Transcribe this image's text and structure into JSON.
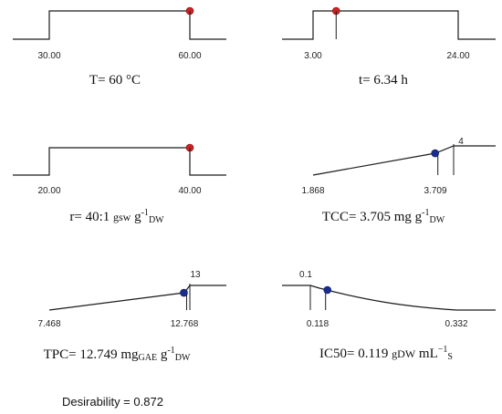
{
  "chart_data": [
    {
      "type": "line",
      "shape": "step",
      "x_ticks": [
        "30.00",
        "60.00"
      ],
      "current_value": 60,
      "marker_color": "#cc2222",
      "caption": {
        "lead": "T= 60 °C"
      }
    },
    {
      "type": "line",
      "shape": "step",
      "x_ticks": [
        "3.00",
        "24.00"
      ],
      "current_value": 6.34,
      "marker_color": "#cc2222",
      "caption": {
        "lead": "t= 6.34 h"
      }
    },
    {
      "type": "line",
      "shape": "step",
      "x_ticks": [
        "20.00",
        "40.00"
      ],
      "current_value": 40,
      "marker_color": "#cc2222",
      "caption": {
        "lead": "r= 40:1 ",
        "unit_small": "gsw",
        "unit": " g",
        "sup": "-1",
        "sub": "DW"
      }
    },
    {
      "type": "line",
      "shape": "ramp-up",
      "x_ticks": [
        "1.868",
        "3.709"
      ],
      "top_label": "4",
      "current_value": 3.705,
      "marker_color": "#1a2d8f",
      "caption": {
        "lead": "TCC= 3.705 mg g",
        "sup": "-1",
        "sub": "DW"
      }
    },
    {
      "type": "line",
      "shape": "ramp-up",
      "x_ticks": [
        "7.468",
        "12.768"
      ],
      "top_label": "13",
      "current_value": 12.749,
      "marker_color": "#1a2d8f",
      "caption": {
        "lead": "TPC= 12.749 mg",
        "sub1": "GAE",
        "mid": " g",
        "sup": "-1",
        "sub": "DW"
      }
    },
    {
      "type": "line",
      "shape": "ramp-down",
      "x_ticks": [
        "0.118",
        "0.332"
      ],
      "top_label": "0.1",
      "current_value": 0.119,
      "marker_color": "#1a2d8f",
      "caption": {
        "lead": "IC50= 0.119 ",
        "unit_small": "gDW",
        "unit": "  mL",
        "sup": "−1",
        "sub": "S"
      }
    }
  ],
  "footer": {
    "desirability": "Desirability = 0.872"
  }
}
